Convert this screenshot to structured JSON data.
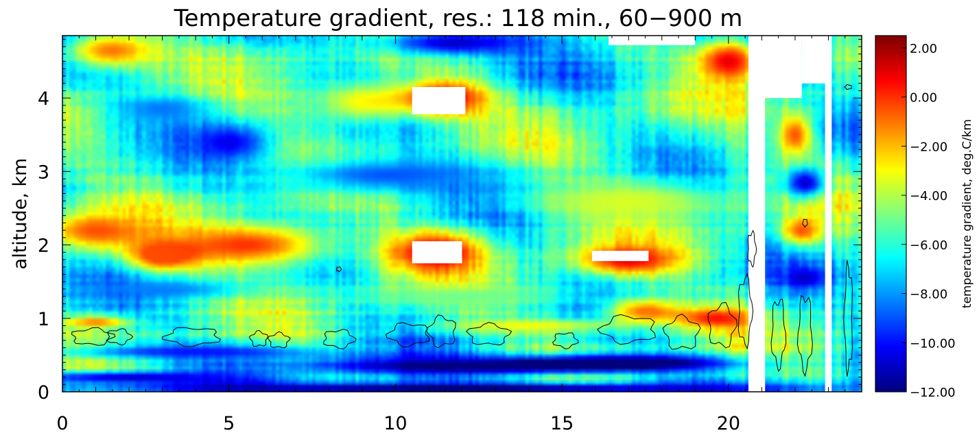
{
  "chart_data": {
    "type": "heatmap",
    "title": "Temperature gradient, res.: 118 min.,  60−900 m",
    "xlabel": "",
    "ylabel": "altitude, km",
    "xlim": [
      0,
      24
    ],
    "ylim": [
      0,
      4.85
    ],
    "x_ticks": [
      0,
      5,
      10,
      15,
      20
    ],
    "x_tick_labels": [
      "0",
      "5",
      "10",
      "15",
      "20"
    ],
    "y_ticks": [
      0,
      1,
      2,
      3,
      4
    ],
    "y_tick_labels": [
      "0",
      "1",
      "2",
      "3",
      "4"
    ],
    "colorbar": {
      "label": "temperature gradient,  deg.C/km",
      "range": [
        -12,
        2.5
      ],
      "ticks": [
        2,
        0,
        -2,
        -4,
        -6,
        -8,
        -10,
        -12
      ],
      "tick_labels": [
        "2.00",
        "0.00",
        "−2.00",
        "−4.00",
        "−6.00",
        "−8.00",
        "−10.00",
        "−12.00"
      ],
      "colormap": [
        "#00007f",
        "#0000ff",
        "#007fff",
        "#00ffff",
        "#7fff7f",
        "#ffff00",
        "#ff7f00",
        "#ff0000",
        "#7f0000"
      ]
    },
    "background_value": -6,
    "features": [
      {
        "x": 12.5,
        "y": 0.35,
        "dx": 5.5,
        "dy": 0.12,
        "value": -12.5
      },
      {
        "x": 17.0,
        "y": 0.4,
        "dx": 3.0,
        "dy": 0.1,
        "value": -12
      },
      {
        "x": 4.0,
        "y": 0.55,
        "dx": 4.0,
        "dy": 0.1,
        "value": -10
      },
      {
        "x": 12.0,
        "y": 0.05,
        "dx": 12.0,
        "dy": 0.08,
        "value": -12.5
      },
      {
        "x": 2.0,
        "y": 0.2,
        "dx": 3.5,
        "dy": 0.08,
        "value": -11
      },
      {
        "x": 11.5,
        "y": 4.0,
        "dx": 1.3,
        "dy": 0.25,
        "value": 1.5
      },
      {
        "x": 11.2,
        "y": 1.9,
        "dx": 1.4,
        "dy": 0.28,
        "value": 1.8
      },
      {
        "x": 17.0,
        "y": 1.8,
        "dx": 1.5,
        "dy": 0.2,
        "value": 1.0
      },
      {
        "x": 5.5,
        "y": 2.0,
        "dx": 2.5,
        "dy": 0.3,
        "value": 0.0
      },
      {
        "x": 1.0,
        "y": 2.2,
        "dx": 1.5,
        "dy": 0.25,
        "value": -0.5
      },
      {
        "x": 3.0,
        "y": 1.85,
        "dx": 1.0,
        "dy": 0.2,
        "value": -0.5
      },
      {
        "x": 1.5,
        "y": 4.65,
        "dx": 1.4,
        "dy": 0.25,
        "value": -1.0
      },
      {
        "x": 20.0,
        "y": 4.5,
        "dx": 1.0,
        "dy": 0.3,
        "value": 1.0
      },
      {
        "x": 19.7,
        "y": 1.0,
        "dx": 1.2,
        "dy": 0.15,
        "value": 0.5
      },
      {
        "x": 17.5,
        "y": 1.1,
        "dx": 1.2,
        "dy": 0.18,
        "value": -1.0
      },
      {
        "x": 22.0,
        "y": 3.5,
        "dx": 0.5,
        "dy": 0.3,
        "value": -0.5
      },
      {
        "x": 22.2,
        "y": 2.2,
        "dx": 0.6,
        "dy": 0.2,
        "value": -0.5
      },
      {
        "x": 5.0,
        "y": 3.4,
        "dx": 1.0,
        "dy": 0.22,
        "value": -10.5
      },
      {
        "x": 11.8,
        "y": 4.75,
        "dx": 2.3,
        "dy": 0.18,
        "value": -11
      },
      {
        "x": 9.8,
        "y": 2.95,
        "dx": 3.5,
        "dy": 0.25,
        "value": -9.0
      },
      {
        "x": 3.0,
        "y": 3.85,
        "dx": 1.5,
        "dy": 0.2,
        "value": -8.5
      },
      {
        "x": 22.3,
        "y": 2.85,
        "dx": 0.6,
        "dy": 0.2,
        "value": -11
      },
      {
        "x": 22.3,
        "y": 1.55,
        "dx": 0.6,
        "dy": 0.15,
        "value": -11
      },
      {
        "x": 17.0,
        "y": 2.6,
        "dx": 3.0,
        "dy": 0.3,
        "value": -3.5
      },
      {
        "x": 9.0,
        "y": 3.95,
        "dx": 1.5,
        "dy": 0.3,
        "value": -3.0
      },
      {
        "x": 3.0,
        "y": 1.4,
        "dx": 2.5,
        "dy": 0.12,
        "value": -8.5
      },
      {
        "x": 12.0,
        "y": 1.3,
        "dx": 3.0,
        "dy": 0.15,
        "value": -5.0
      },
      {
        "x": 1.0,
        "y": 0.95,
        "dx": 1.0,
        "dy": 0.08,
        "value": -1.0
      },
      {
        "x": 14.0,
        "y": 0.9,
        "dx": 3.0,
        "dy": 0.1,
        "value": -3.0
      }
    ],
    "masked_regions": [
      {
        "x": [
          10.5,
          12.1
        ],
        "y": [
          3.78,
          4.15
        ]
      },
      {
        "x": [
          10.5,
          12.0
        ],
        "y": [
          1.75,
          2.05
        ]
      },
      {
        "x": [
          15.9,
          17.6
        ],
        "y": [
          1.78,
          1.92
        ]
      },
      {
        "x": [
          20.6,
          21.1
        ],
        "y": [
          0,
          4.85
        ]
      },
      {
        "x": [
          22.9,
          23.1
        ],
        "y": [
          0,
          4.85
        ]
      },
      {
        "x": [
          20.8,
          22.2
        ],
        "y": [
          4.0,
          4.85
        ]
      },
      {
        "x": [
          22.2,
          23.0
        ],
        "y": [
          4.2,
          4.85
        ]
      },
      {
        "x": [
          16.4,
          19.0
        ],
        "y": [
          4.72,
          4.85
        ]
      }
    ],
    "contour_level": "",
    "contours": [
      {
        "x": 0.9,
        "y": 0.75,
        "dx": 0.6,
        "dy": 0.11
      },
      {
        "x": 1.7,
        "y": 0.75,
        "dx": 0.35,
        "dy": 0.1
      },
      {
        "x": 3.9,
        "y": 0.75,
        "dx": 0.8,
        "dy": 0.12
      },
      {
        "x": 5.9,
        "y": 0.72,
        "dx": 0.25,
        "dy": 0.1
      },
      {
        "x": 6.5,
        "y": 0.7,
        "dx": 0.3,
        "dy": 0.1
      },
      {
        "x": 8.3,
        "y": 0.72,
        "dx": 0.45,
        "dy": 0.12
      },
      {
        "x": 10.4,
        "y": 0.78,
        "dx": 0.6,
        "dy": 0.15
      },
      {
        "x": 11.4,
        "y": 0.82,
        "dx": 0.4,
        "dy": 0.2
      },
      {
        "x": 12.8,
        "y": 0.78,
        "dx": 0.6,
        "dy": 0.14
      },
      {
        "x": 15.1,
        "y": 0.7,
        "dx": 0.35,
        "dy": 0.1
      },
      {
        "x": 17.0,
        "y": 0.85,
        "dx": 0.8,
        "dy": 0.18
      },
      {
        "x": 18.6,
        "y": 0.8,
        "dx": 0.5,
        "dy": 0.22
      },
      {
        "x": 19.8,
        "y": 0.9,
        "dx": 0.4,
        "dy": 0.28
      },
      {
        "x": 20.5,
        "y": 1.1,
        "dx": 0.2,
        "dy": 0.45
      },
      {
        "x": 21.5,
        "y": 0.8,
        "dx": 0.2,
        "dy": 0.45
      },
      {
        "x": 22.3,
        "y": 0.8,
        "dx": 0.2,
        "dy": 0.5
      },
      {
        "x": 23.6,
        "y": 1.0,
        "dx": 0.12,
        "dy": 0.7
      },
      {
        "x": 20.7,
        "y": 1.95,
        "dx": 0.12,
        "dy": 0.22
      },
      {
        "x": 8.3,
        "y": 1.67,
        "dx": 0.07,
        "dy": 0.03
      },
      {
        "x": 22.3,
        "y": 2.3,
        "dx": 0.07,
        "dy": 0.05
      },
      {
        "x": 23.6,
        "y": 4.15,
        "dx": 0.1,
        "dy": 0.03
      }
    ]
  }
}
